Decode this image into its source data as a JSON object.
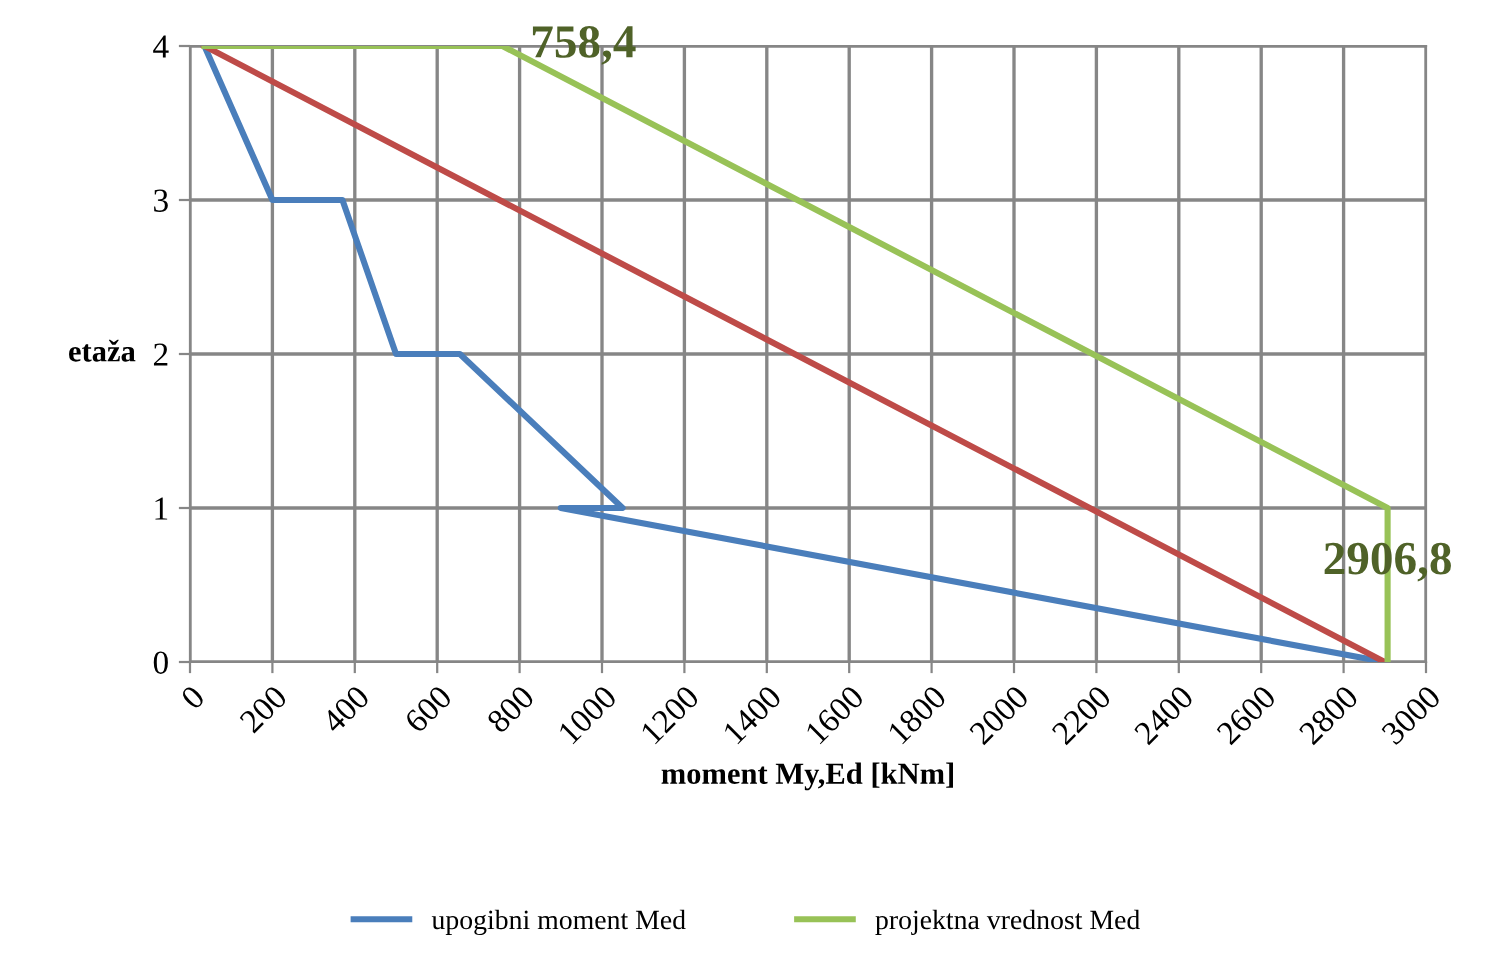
{
  "chart_data": {
    "type": "line",
    "xlabel": "moment My,Ed [kNm]",
    "ylabel": "etaža",
    "series": [
      {
        "name": "upogibni moment Med",
        "color": "#4a7ebb",
        "x": [
          35,
          200,
          370,
          500,
          655,
          1050,
          900,
          2900
        ],
        "values": [
          4,
          3,
          3,
          2,
          2,
          1,
          1,
          0
        ]
      },
      {
        "color": "#be4b48",
        "x": [
          35,
          2900
        ],
        "values": [
          4,
          0
        ]
      },
      {
        "name": "projektna vrednost Med",
        "color": "#98c257",
        "x": [
          35,
          758.4,
          2906.8,
          2906.8
        ],
        "values": [
          4,
          4,
          1,
          0
        ]
      }
    ],
    "annotations": [
      {
        "text": "758,4",
        "x": 758.4,
        "y": 4
      },
      {
        "text": "2906,8",
        "x": 2906.8,
        "y": 1
      }
    ],
    "xlim": [
      0,
      3000
    ],
    "xticks": [
      0,
      200,
      400,
      600,
      800,
      1000,
      1200,
      1400,
      1600,
      1800,
      2000,
      2200,
      2400,
      2600,
      2800,
      3000
    ],
    "ylim": [
      0,
      4
    ],
    "yticks": [
      0,
      1,
      2,
      3,
      4
    ],
    "grid": true,
    "legend": "bottom",
    "marker": "none",
    "line_style": "solid"
  }
}
